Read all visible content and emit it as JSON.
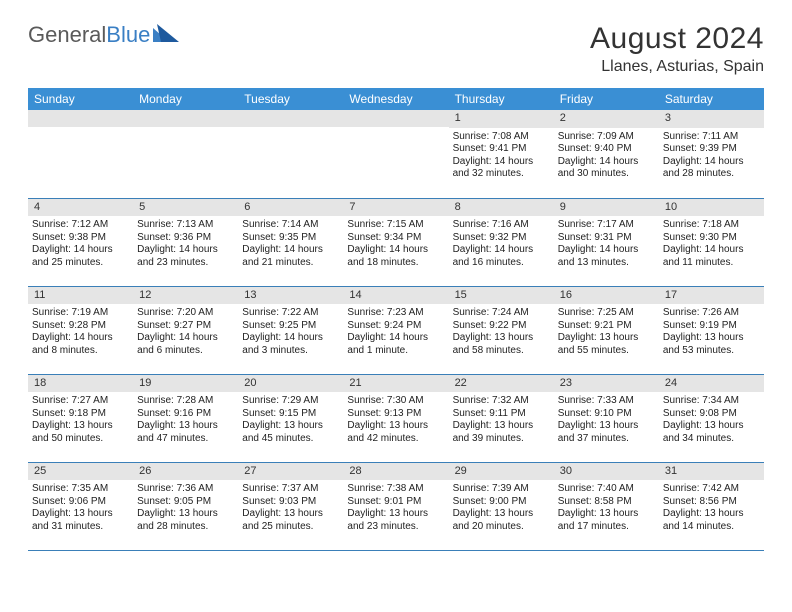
{
  "logo": {
    "text1": "General",
    "text2": "Blue"
  },
  "title": "August 2024",
  "location": "Llanes, Asturias, Spain",
  "colors": {
    "header_bg": "#3a8fd4",
    "header_fg": "#ffffff",
    "daynum_bg": "#e5e5e5",
    "border": "#3a7fb8",
    "logo_gray": "#5a5a5a",
    "logo_blue": "#3a7fc4"
  },
  "day_names": [
    "Sunday",
    "Monday",
    "Tuesday",
    "Wednesday",
    "Thursday",
    "Friday",
    "Saturday"
  ],
  "weeks": [
    [
      null,
      null,
      null,
      null,
      {
        "n": "1",
        "sr": "7:08 AM",
        "ss": "9:41 PM",
        "d1": "Daylight: 14 hours",
        "d2": "and 32 minutes."
      },
      {
        "n": "2",
        "sr": "7:09 AM",
        "ss": "9:40 PM",
        "d1": "Daylight: 14 hours",
        "d2": "and 30 minutes."
      },
      {
        "n": "3",
        "sr": "7:11 AM",
        "ss": "9:39 PM",
        "d1": "Daylight: 14 hours",
        "d2": "and 28 minutes."
      }
    ],
    [
      {
        "n": "4",
        "sr": "7:12 AM",
        "ss": "9:38 PM",
        "d1": "Daylight: 14 hours",
        "d2": "and 25 minutes."
      },
      {
        "n": "5",
        "sr": "7:13 AM",
        "ss": "9:36 PM",
        "d1": "Daylight: 14 hours",
        "d2": "and 23 minutes."
      },
      {
        "n": "6",
        "sr": "7:14 AM",
        "ss": "9:35 PM",
        "d1": "Daylight: 14 hours",
        "d2": "and 21 minutes."
      },
      {
        "n": "7",
        "sr": "7:15 AM",
        "ss": "9:34 PM",
        "d1": "Daylight: 14 hours",
        "d2": "and 18 minutes."
      },
      {
        "n": "8",
        "sr": "7:16 AM",
        "ss": "9:32 PM",
        "d1": "Daylight: 14 hours",
        "d2": "and 16 minutes."
      },
      {
        "n": "9",
        "sr": "7:17 AM",
        "ss": "9:31 PM",
        "d1": "Daylight: 14 hours",
        "d2": "and 13 minutes."
      },
      {
        "n": "10",
        "sr": "7:18 AM",
        "ss": "9:30 PM",
        "d1": "Daylight: 14 hours",
        "d2": "and 11 minutes."
      }
    ],
    [
      {
        "n": "11",
        "sr": "7:19 AM",
        "ss": "9:28 PM",
        "d1": "Daylight: 14 hours",
        "d2": "and 8 minutes."
      },
      {
        "n": "12",
        "sr": "7:20 AM",
        "ss": "9:27 PM",
        "d1": "Daylight: 14 hours",
        "d2": "and 6 minutes."
      },
      {
        "n": "13",
        "sr": "7:22 AM",
        "ss": "9:25 PM",
        "d1": "Daylight: 14 hours",
        "d2": "and 3 minutes."
      },
      {
        "n": "14",
        "sr": "7:23 AM",
        "ss": "9:24 PM",
        "d1": "Daylight: 14 hours",
        "d2": "and 1 minute."
      },
      {
        "n": "15",
        "sr": "7:24 AM",
        "ss": "9:22 PM",
        "d1": "Daylight: 13 hours",
        "d2": "and 58 minutes."
      },
      {
        "n": "16",
        "sr": "7:25 AM",
        "ss": "9:21 PM",
        "d1": "Daylight: 13 hours",
        "d2": "and 55 minutes."
      },
      {
        "n": "17",
        "sr": "7:26 AM",
        "ss": "9:19 PM",
        "d1": "Daylight: 13 hours",
        "d2": "and 53 minutes."
      }
    ],
    [
      {
        "n": "18",
        "sr": "7:27 AM",
        "ss": "9:18 PM",
        "d1": "Daylight: 13 hours",
        "d2": "and 50 minutes."
      },
      {
        "n": "19",
        "sr": "7:28 AM",
        "ss": "9:16 PM",
        "d1": "Daylight: 13 hours",
        "d2": "and 47 minutes."
      },
      {
        "n": "20",
        "sr": "7:29 AM",
        "ss": "9:15 PM",
        "d1": "Daylight: 13 hours",
        "d2": "and 45 minutes."
      },
      {
        "n": "21",
        "sr": "7:30 AM",
        "ss": "9:13 PM",
        "d1": "Daylight: 13 hours",
        "d2": "and 42 minutes."
      },
      {
        "n": "22",
        "sr": "7:32 AM",
        "ss": "9:11 PM",
        "d1": "Daylight: 13 hours",
        "d2": "and 39 minutes."
      },
      {
        "n": "23",
        "sr": "7:33 AM",
        "ss": "9:10 PM",
        "d1": "Daylight: 13 hours",
        "d2": "and 37 minutes."
      },
      {
        "n": "24",
        "sr": "7:34 AM",
        "ss": "9:08 PM",
        "d1": "Daylight: 13 hours",
        "d2": "and 34 minutes."
      }
    ],
    [
      {
        "n": "25",
        "sr": "7:35 AM",
        "ss": "9:06 PM",
        "d1": "Daylight: 13 hours",
        "d2": "and 31 minutes."
      },
      {
        "n": "26",
        "sr": "7:36 AM",
        "ss": "9:05 PM",
        "d1": "Daylight: 13 hours",
        "d2": "and 28 minutes."
      },
      {
        "n": "27",
        "sr": "7:37 AM",
        "ss": "9:03 PM",
        "d1": "Daylight: 13 hours",
        "d2": "and 25 minutes."
      },
      {
        "n": "28",
        "sr": "7:38 AM",
        "ss": "9:01 PM",
        "d1": "Daylight: 13 hours",
        "d2": "and 23 minutes."
      },
      {
        "n": "29",
        "sr": "7:39 AM",
        "ss": "9:00 PM",
        "d1": "Daylight: 13 hours",
        "d2": "and 20 minutes."
      },
      {
        "n": "30",
        "sr": "7:40 AM",
        "ss": "8:58 PM",
        "d1": "Daylight: 13 hours",
        "d2": "and 17 minutes."
      },
      {
        "n": "31",
        "sr": "7:42 AM",
        "ss": "8:56 PM",
        "d1": "Daylight: 13 hours",
        "d2": "and 14 minutes."
      }
    ]
  ]
}
